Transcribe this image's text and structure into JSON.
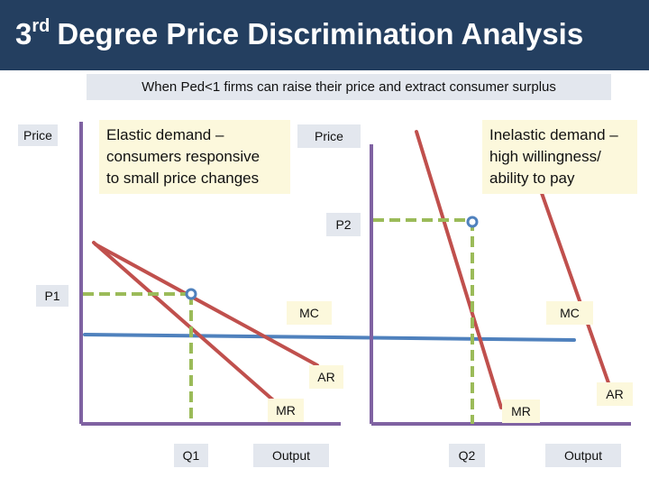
{
  "title": {
    "number": "3",
    "superscript": "rd",
    "text": "Degree Price Discrimination Analysis"
  },
  "subtitle": "When Ped<1 firms can raise their price and extract consumer surplus",
  "left_panel": {
    "note": "Elastic demand –\nconsumers responsive\nto small price changes",
    "price_axis": "Price",
    "price_label": "P1",
    "quantity_label": "Q1",
    "output_axis": "Output",
    "mc_label": "MC",
    "ar_label": "AR",
    "mr_label": "MR"
  },
  "right_panel": {
    "note": "Inelastic demand –\nhigh willingness/\nability to pay",
    "price_axis": "Price",
    "price_label": "P2",
    "quantity_label": "Q2",
    "output_axis": "Output",
    "mc_label": "MC",
    "ar_label": "AR",
    "mr_label": "MR"
  },
  "colors": {
    "title_bar": "#243f60",
    "axis": "#7f62a2",
    "demand_mr": "#c0504d",
    "mc": "#4f81bd",
    "guide": "#9bbb59",
    "label_box_grey": "#e3e7ee",
    "label_box_cream": "#fcf8dc"
  }
}
